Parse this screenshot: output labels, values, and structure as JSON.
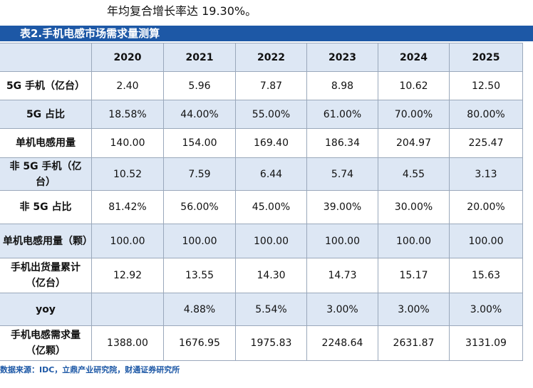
{
  "intro": "年均复合增长率达 19.30%。",
  "table": {
    "title": "表2.手机电感市场需求量测算",
    "header": [
      null,
      "2020",
      "2021",
      "2022",
      "2023",
      "2024",
      "2025"
    ],
    "rows": [
      [
        "5G 手机（亿台）",
        "2.40",
        "5.96",
        "7.87",
        "8.98",
        "10.62",
        "12.50"
      ],
      [
        "5G 占比",
        "18.58%",
        "44.00%",
        "55.00%",
        "61.00%",
        "70.00%",
        "80.00%"
      ],
      [
        "单机电感用量",
        "140.00",
        "154.00",
        "169.40",
        "186.34",
        "204.97",
        "225.47"
      ],
      [
        "非 5G 手机（亿台）",
        "10.52",
        "7.59",
        "6.44",
        "5.74",
        "4.55",
        "3.13"
      ],
      [
        "非 5G 占比",
        "81.42%",
        "56.00%",
        "45.00%",
        "39.00%",
        "30.00%",
        "20.00%"
      ],
      [
        "单机电感用量（颗）",
        "100.00",
        "100.00",
        "100.00",
        "100.00",
        "100.00",
        "100.00"
      ],
      [
        "手机出货量累计（亿台）",
        "12.92",
        "13.55",
        "14.30",
        "14.73",
        "15.17",
        "15.63"
      ],
      [
        "yoy",
        null,
        "4.88%",
        "5.54%",
        "3.00%",
        "3.00%",
        "3.00%"
      ],
      [
        "手机电感需求量（亿颗）",
        "1388.00",
        "1676.95",
        "1975.83",
        "2248.64",
        "2631.87",
        "3131.09"
      ]
    ]
  },
  "source": "数据来源：IDC，立鼎产业研究院，财通证券研究所"
}
